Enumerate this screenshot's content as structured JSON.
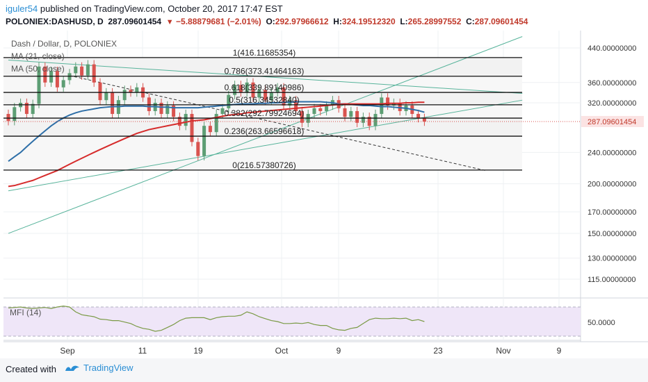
{
  "header": {
    "publisher": "iguler54",
    "published_text": "published on TradingView.com, October 20, 2017 17:47 EST",
    "symbol": "POLONIEX:DASHUSD, D",
    "last": "287.09601454",
    "change": "−5.88879681 (−2.01%)",
    "o_label": "O:",
    "o": "292.97966612",
    "h_label": "H:",
    "h": "324.19512320",
    "l_label": "L:",
    "l": "265.28997552",
    "c_label": "C:",
    "c": "287.09601454"
  },
  "legend": {
    "title": "Dash / Dollar, D, POLONIEX",
    "ma21": "MA (21, close)",
    "ma50": "MA (50, close)"
  },
  "fib": [
    {
      "label": "1(416.11685354)",
      "value": 416.11685354
    },
    {
      "label": "0.786(373.41464163)",
      "value": 373.41464163
    },
    {
      "label": "0.618(339.89140986)",
      "value": 339.89140986
    },
    {
      "label": "0.5(316.34532840)",
      "value": 316.3453284
    },
    {
      "label": "0.382(292.79924694)",
      "value": 292.79924694
    },
    {
      "label": "0.236(263.66596618)",
      "value": 263.66596618
    },
    {
      "label": "0(216.57380726)",
      "value": 216.57380726
    }
  ],
  "price_axis": {
    "ticks": [
      "440.00000000",
      "360.00000000",
      "320.00000000",
      "240.00000000",
      "200.00000000",
      "170.00000000",
      "150.00000000",
      "130.00000000",
      "115.00000000"
    ],
    "tick_values": [
      440,
      360,
      320,
      240,
      200,
      170,
      150,
      130,
      115
    ],
    "last_label": "287.09601454",
    "last_value": 287.09601454
  },
  "mfi": {
    "label": "MFI (14)",
    "tick": "50.0000",
    "values": [
      78,
      79,
      80,
      78,
      77,
      78,
      79,
      77,
      80,
      82,
      80,
      70,
      64,
      62,
      60,
      55,
      54,
      52,
      52,
      49,
      46,
      40,
      36,
      34,
      30,
      32,
      38,
      44,
      52,
      57,
      58,
      58,
      58,
      54,
      58,
      60,
      61,
      61,
      63,
      70,
      66,
      60,
      56,
      52,
      50,
      46,
      46,
      47,
      46,
      48,
      44,
      42,
      42,
      36,
      33,
      32,
      36,
      38,
      46,
      54,
      57,
      56,
      56,
      57,
      56,
      57,
      52,
      54,
      50
    ]
  },
  "time_axis": {
    "labels": [
      "Sep",
      "11",
      "19",
      "Oct",
      "9",
      "23",
      "Nov",
      "9"
    ]
  },
  "chart_data": {
    "type": "candlestick",
    "title": "Dash / Dollar, D, POLONIEX",
    "xlabel": "",
    "ylabel": "",
    "scale": "log",
    "ylim": [
      100,
      470
    ],
    "series": [
      {
        "name": "MA (21, close)",
        "values": [
          228,
          234,
          240,
          248,
          256,
          264,
          272,
          280,
          287,
          293,
          298,
          302,
          305,
          307,
          309,
          311,
          312,
          313,
          313,
          314,
          314,
          314,
          314,
          313,
          313,
          312,
          312,
          311,
          311,
          311,
          311,
          311,
          312,
          313,
          314,
          315,
          316,
          317,
          318,
          318,
          318,
          319,
          319,
          320,
          320,
          321,
          321,
          322,
          322,
          322,
          322,
          322,
          321,
          320,
          318,
          318,
          317,
          316,
          315,
          315,
          314,
          313,
          313,
          312,
          311,
          310,
          308,
          306,
          303
        ]
      },
      {
        "name": "MA (50, close)",
        "values": [
          197,
          198,
          200,
          202,
          204,
          207,
          210,
          213,
          216,
          220,
          224,
          228,
          232,
          236,
          240,
          244,
          248,
          252,
          256,
          260,
          264,
          268,
          271,
          274,
          276,
          278,
          280,
          282,
          284,
          286,
          288,
          289,
          290,
          292,
          294,
          296,
          298,
          299,
          300,
          302,
          303,
          304,
          305,
          306,
          307,
          308,
          309,
          310,
          311,
          312,
          313,
          314,
          315,
          316,
          317,
          318,
          318,
          318,
          318,
          318,
          318,
          318,
          319,
          319,
          319,
          320,
          320,
          321,
          321
        ]
      }
    ],
    "candles": [
      {
        "o": 300,
        "c": 288
      },
      {
        "o": 288,
        "c": 312
      },
      {
        "o": 312,
        "c": 320
      },
      {
        "o": 320,
        "c": 300
      },
      {
        "o": 300,
        "c": 318
      },
      {
        "o": 318,
        "c": 395
      },
      {
        "o": 395,
        "c": 360
      },
      {
        "o": 360,
        "c": 385
      },
      {
        "o": 385,
        "c": 350
      },
      {
        "o": 350,
        "c": 365
      },
      {
        "o": 365,
        "c": 380
      },
      {
        "o": 380,
        "c": 395
      },
      {
        "o": 395,
        "c": 375
      },
      {
        "o": 375,
        "c": 400
      },
      {
        "o": 400,
        "c": 360
      },
      {
        "o": 360,
        "c": 325
      },
      {
        "o": 325,
        "c": 340
      },
      {
        "o": 340,
        "c": 300
      },
      {
        "o": 300,
        "c": 325
      },
      {
        "o": 325,
        "c": 345
      },
      {
        "o": 345,
        "c": 340
      },
      {
        "o": 340,
        "c": 350
      },
      {
        "o": 350,
        "c": 330
      },
      {
        "o": 330,
        "c": 305
      },
      {
        "o": 305,
        "c": 320
      },
      {
        "o": 320,
        "c": 300
      },
      {
        "o": 300,
        "c": 315
      },
      {
        "o": 315,
        "c": 295
      },
      {
        "o": 295,
        "c": 280
      },
      {
        "o": 280,
        "c": 300
      },
      {
        "o": 300,
        "c": 255
      },
      {
        "o": 255,
        "c": 235
      },
      {
        "o": 235,
        "c": 280
      },
      {
        "o": 280,
        "c": 270
      },
      {
        "o": 270,
        "c": 300
      },
      {
        "o": 300,
        "c": 310
      },
      {
        "o": 310,
        "c": 335
      },
      {
        "o": 335,
        "c": 355
      },
      {
        "o": 355,
        "c": 340
      },
      {
        "o": 340,
        "c": 360
      },
      {
        "o": 360,
        "c": 330
      },
      {
        "o": 330,
        "c": 345
      },
      {
        "o": 345,
        "c": 325
      },
      {
        "o": 325,
        "c": 340
      },
      {
        "o": 340,
        "c": 350
      },
      {
        "o": 350,
        "c": 315
      },
      {
        "o": 315,
        "c": 325
      },
      {
        "o": 325,
        "c": 305
      },
      {
        "o": 305,
        "c": 285
      },
      {
        "o": 285,
        "c": 300
      },
      {
        "o": 300,
        "c": 310
      },
      {
        "o": 310,
        "c": 305
      },
      {
        "o": 305,
        "c": 315
      },
      {
        "o": 315,
        "c": 325
      },
      {
        "o": 325,
        "c": 310
      },
      {
        "o": 310,
        "c": 295
      },
      {
        "o": 295,
        "c": 305
      },
      {
        "o": 305,
        "c": 285
      },
      {
        "o": 285,
        "c": 295
      },
      {
        "o": 295,
        "c": 280
      },
      {
        "o": 280,
        "c": 300
      },
      {
        "o": 300,
        "c": 330
      },
      {
        "o": 330,
        "c": 315
      },
      {
        "o": 315,
        "c": 320
      },
      {
        "o": 320,
        "c": 305
      },
      {
        "o": 305,
        "c": 315
      },
      {
        "o": 315,
        "c": 300
      },
      {
        "o": 300,
        "c": 292.98
      },
      {
        "o": 292.98,
        "c": 287.1
      }
    ],
    "trendlines": [
      {
        "from": {
          "x": 0,
          "y": 192
        },
        "to": {
          "x": 84,
          "y": 325
        }
      },
      {
        "from": {
          "x": 0,
          "y": 150
        },
        "to": {
          "x": 84,
          "y": 470
        }
      },
      {
        "from": {
          "x": 0,
          "y": 410
        },
        "to": {
          "x": 84,
          "y": 338
        }
      },
      {
        "from": {
          "x": 10,
          "y": 375
        },
        "to": {
          "x": 78,
          "y": 216
        }
      }
    ]
  }
}
